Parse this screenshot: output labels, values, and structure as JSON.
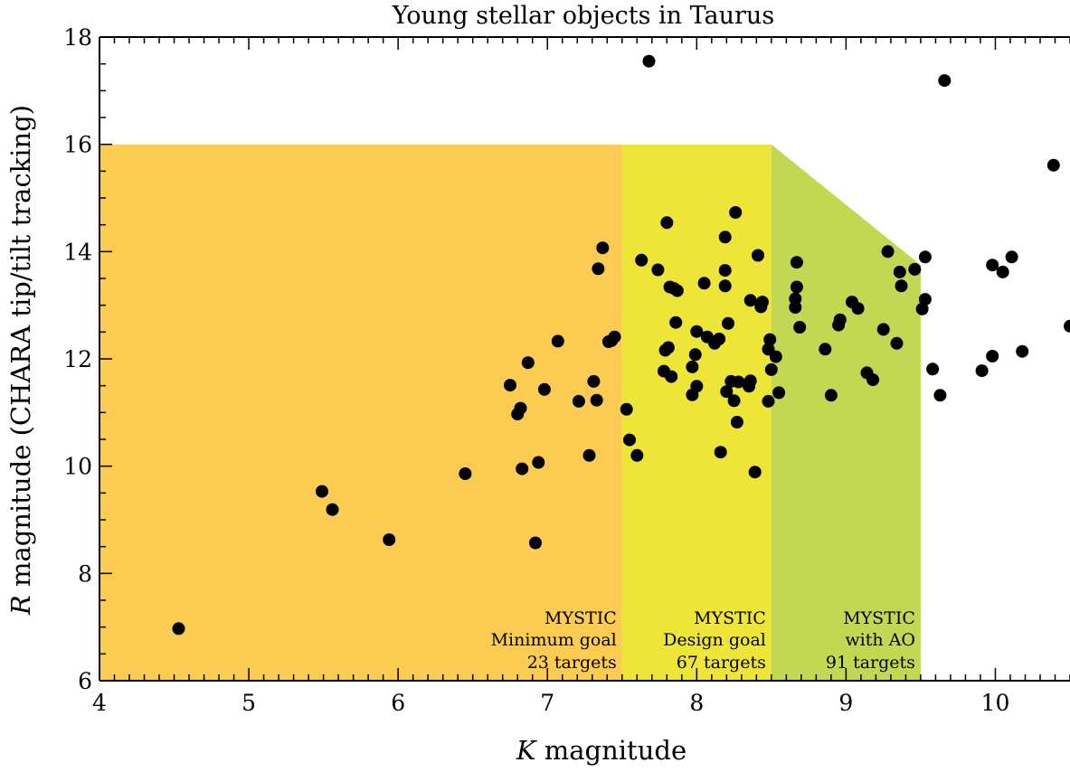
{
  "chart_data": {
    "type": "scatter",
    "title": "Young stellar objects in Taurus",
    "xlabel": "K magnitude",
    "ylabel": "R magnitude (CHARA tip/tilt tracking)",
    "xlabel_parts": {
      "italic": "K",
      "rest": " magnitude"
    },
    "ylabel_parts": {
      "italic": "R",
      "rest": " magnitude (CHARA tip/tilt tracking)"
    },
    "xlim": [
      4,
      10.5
    ],
    "ylim": [
      6,
      18
    ],
    "xticks": [
      4,
      5,
      6,
      7,
      8,
      9,
      10
    ],
    "yticks": [
      6,
      8,
      10,
      12,
      14,
      16,
      18
    ],
    "grid": false,
    "legend": "none",
    "point_color": "#000000",
    "regions": [
      {
        "label_lines": [
          "MYSTIC",
          "Minimum goal",
          "23 targets"
        ],
        "color": "#fccc52",
        "polygon": [
          [
            4,
            6
          ],
          [
            7.5,
            6
          ],
          [
            7.5,
            16
          ],
          [
            4,
            16
          ]
        ]
      },
      {
        "label_lines": [
          "MYSTIC",
          "Design goal",
          "67 targets"
        ],
        "color": "#ede537",
        "polygon": [
          [
            7.5,
            6
          ],
          [
            8.5,
            6
          ],
          [
            8.5,
            16
          ],
          [
            7.5,
            16
          ]
        ]
      },
      {
        "label_lines": [
          "MYSTIC",
          "with AO",
          "91 targets"
        ],
        "color": "#c3d852",
        "polygon": [
          [
            8.5,
            6
          ],
          [
            9.5,
            6
          ],
          [
            9.5,
            13.75
          ],
          [
            8.5,
            16
          ]
        ]
      }
    ],
    "points": [
      [
        4.53,
        6.97
      ],
      [
        5.49,
        9.53
      ],
      [
        5.56,
        9.19
      ],
      [
        5.94,
        8.63
      ],
      [
        6.45,
        9.86
      ],
      [
        6.75,
        11.51
      ],
      [
        6.8,
        10.97
      ],
      [
        6.82,
        11.08
      ],
      [
        6.83,
        9.95
      ],
      [
        6.87,
        11.93
      ],
      [
        6.92,
        8.57
      ],
      [
        6.94,
        10.07
      ],
      [
        6.98,
        11.43
      ],
      [
        7.07,
        12.33
      ],
      [
        7.21,
        11.21
      ],
      [
        7.28,
        10.2
      ],
      [
        7.31,
        11.58
      ],
      [
        7.33,
        11.23
      ],
      [
        7.34,
        13.68
      ],
      [
        7.37,
        14.07
      ],
      [
        7.41,
        12.32
      ],
      [
        7.43,
        12.34
      ],
      [
        7.45,
        12.41
      ],
      [
        7.53,
        11.06
      ],
      [
        7.55,
        10.49
      ],
      [
        7.6,
        10.2
      ],
      [
        7.63,
        13.84
      ],
      [
        7.68,
        17.55
      ],
      [
        7.74,
        13.66
      ],
      [
        7.78,
        11.77
      ],
      [
        7.79,
        12.16
      ],
      [
        7.8,
        14.54
      ],
      [
        7.81,
        12.21
      ],
      [
        7.82,
        13.34
      ],
      [
        7.83,
        11.67
      ],
      [
        7.85,
        13.31
      ],
      [
        7.86,
        12.68
      ],
      [
        7.87,
        13.27
      ],
      [
        7.97,
        11.85
      ],
      [
        7.97,
        11.33
      ],
      [
        7.99,
        12.08
      ],
      [
        8.0,
        11.49
      ],
      [
        8.0,
        12.51
      ],
      [
        8.05,
        13.41
      ],
      [
        8.07,
        12.41
      ],
      [
        8.12,
        12.29
      ],
      [
        8.15,
        12.37
      ],
      [
        8.16,
        10.26
      ],
      [
        8.19,
        14.27
      ],
      [
        8.19,
        13.65
      ],
      [
        8.19,
        13.36
      ],
      [
        8.2,
        11.39
      ],
      [
        8.21,
        12.66
      ],
      [
        8.23,
        11.58
      ],
      [
        8.25,
        11.22
      ],
      [
        8.26,
        14.73
      ],
      [
        8.27,
        10.82
      ],
      [
        8.28,
        11.57
      ],
      [
        8.35,
        11.49
      ],
      [
        8.36,
        11.59
      ],
      [
        8.36,
        13.09
      ],
      [
        8.39,
        9.89
      ],
      [
        8.41,
        13.93
      ],
      [
        8.43,
        12.97
      ],
      [
        8.44,
        13.06
      ],
      [
        8.48,
        11.21
      ],
      [
        8.48,
        12.18
      ],
      [
        8.49,
        12.36
      ],
      [
        8.5,
        11.8
      ],
      [
        8.53,
        12.04
      ],
      [
        8.55,
        11.37
      ],
      [
        8.66,
        13.12
      ],
      [
        8.66,
        12.96
      ],
      [
        8.67,
        13.34
      ],
      [
        8.67,
        13.8
      ],
      [
        8.69,
        12.59
      ],
      [
        8.86,
        12.18
      ],
      [
        8.9,
        11.32
      ],
      [
        8.95,
        12.63
      ],
      [
        8.96,
        12.73
      ],
      [
        9.04,
        13.06
      ],
      [
        9.08,
        12.94
      ],
      [
        9.14,
        11.74
      ],
      [
        9.18,
        11.61
      ],
      [
        9.25,
        12.55
      ],
      [
        9.28,
        14.0
      ],
      [
        9.34,
        12.29
      ],
      [
        9.36,
        13.62
      ],
      [
        9.37,
        13.36
      ],
      [
        9.46,
        13.67
      ],
      [
        9.51,
        12.93
      ],
      [
        9.53,
        13.11
      ],
      [
        9.53,
        13.9
      ],
      [
        9.58,
        11.81
      ],
      [
        9.63,
        11.32
      ],
      [
        9.66,
        17.19
      ],
      [
        9.91,
        11.78
      ],
      [
        9.98,
        12.05
      ],
      [
        9.98,
        13.75
      ],
      [
        10.05,
        13.62
      ],
      [
        10.11,
        13.9
      ],
      [
        10.18,
        12.14
      ],
      [
        10.39,
        15.61
      ],
      [
        10.5,
        12.61
      ]
    ]
  }
}
